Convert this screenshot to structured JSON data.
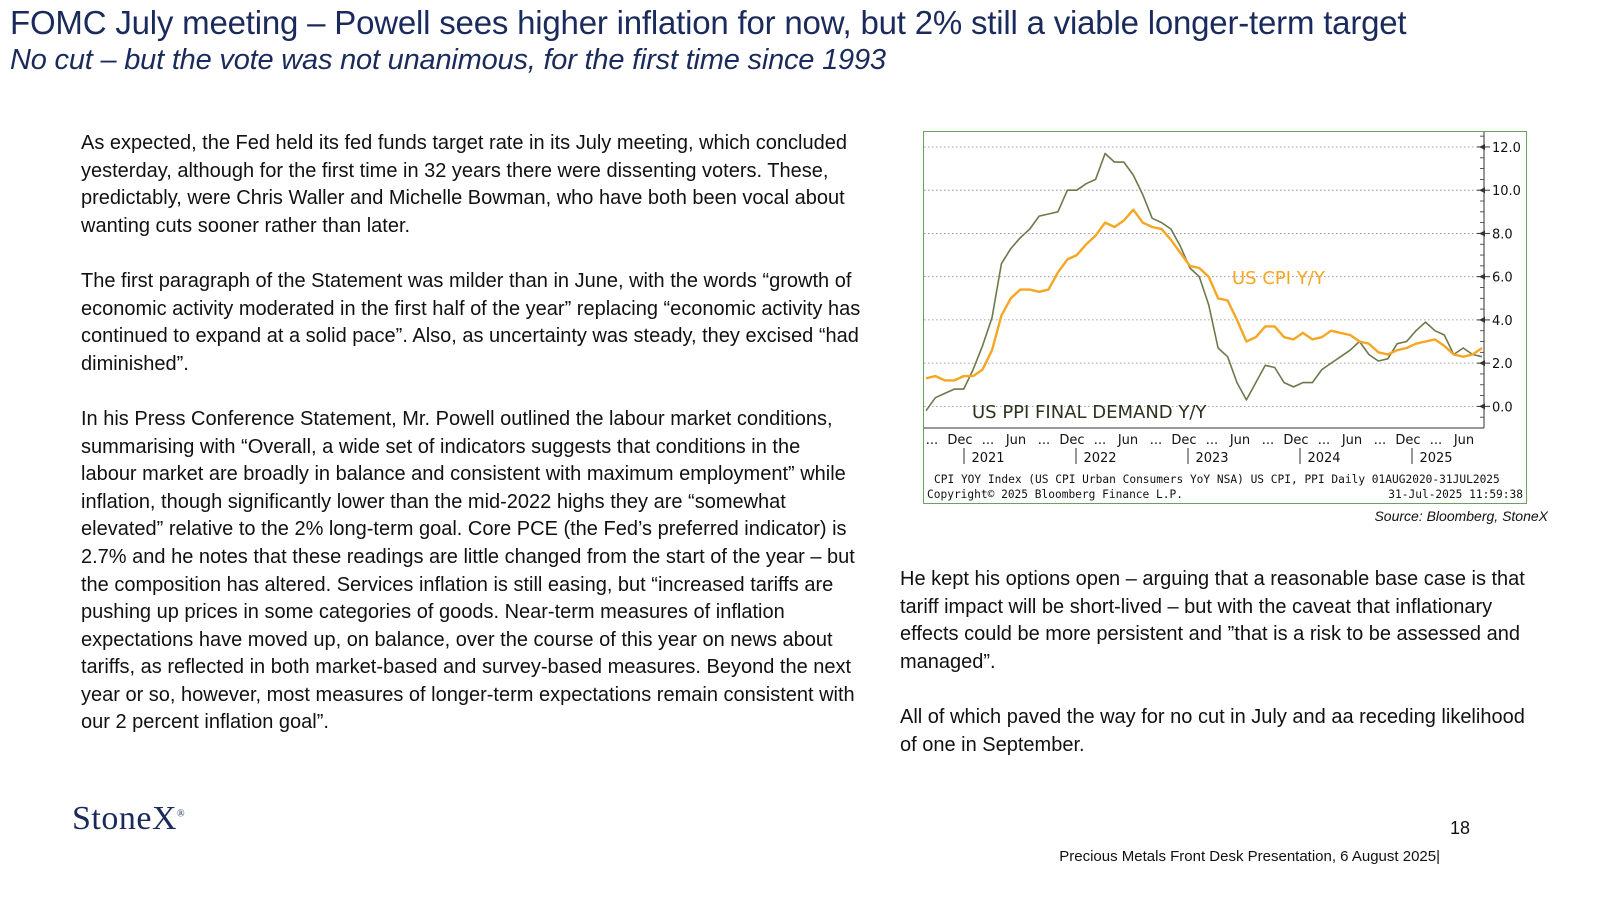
{
  "header": {
    "title": "FOMC July meeting – Powell sees higher inflation for now, but 2% still a viable longer-term target",
    "subtitle": "No cut – but the vote was not unanimous, for the first time since 1993"
  },
  "left_column": {
    "paragraphs": [
      "As expected, the Fed held its fed funds target rate in its July meeting, which concluded yesterday, although for the first time in 32 years there were dissenting voters.  These, predictably, were Chris Waller and Michelle Bowman, who have both been vocal about wanting cuts sooner rather than later.",
      "The first paragraph of the Statement was milder than in June, with the words “growth of economic activity moderated in the first half of the year” replacing “economic activity has continued to expand at a solid pace”.   Also, as uncertainty was steady, they excised “had diminished”.",
      "In his Press Conference Statement, Mr. Powell outlined the labour market conditions, summarising with “Overall, a wide set of indicators suggests that conditions in the labour market are broadly in balance and consistent with maximum employment” while inflation, though significantly lower than the mid-2022 highs  they are “somewhat elevated” relative to the  2% long-term goal.  Core PCE (the Fed’s preferred indicator) is 2.7% and he notes that these readings are little changed from the start of the year – but the composition has altered.  Services inflation is still easing, but “increased tariffs are pushing up prices in some categories of goods.  Near-term measures of inflation expectations have moved up, on balance, over the course of this year on news about tariffs, as reflected in both market-based and survey-based measures.  Beyond the next year or so, however, most measures of longer-term expectations remain consistent with our 2 percent inflation goal”."
    ]
  },
  "right_column": {
    "paragraphs": [
      "He kept his options open – arguing that a reasonable base case is that tariff impact will be short-lived – but with the caveat that inflationary effects could be more persistent and ”that is a  risk to be assessed and managed”.",
      "All of which paved the way for no cut in July and aa receding likelihood of one in September."
    ]
  },
  "chart_data": {
    "type": "line",
    "ylim": [
      -1.0,
      12.6
    ],
    "y_ticks": [
      "12.0",
      "10.0",
      "8.0",
      "6.0",
      "4.0",
      "2.0",
      "0.0"
    ],
    "y_tick_values": [
      12,
      10,
      8,
      6,
      4,
      2,
      0
    ],
    "x_tick_labels": [
      "...",
      "Dec",
      "...",
      "Jun",
      "...",
      "Dec",
      "...",
      "Jun",
      "...",
      "Dec",
      "...",
      "Jun",
      "...",
      "Dec",
      "...",
      "Jun",
      "...",
      "Dec",
      "...",
      "Jun"
    ],
    "year_labels": [
      "2021",
      "2022",
      "2023",
      "2024",
      "2025"
    ],
    "x_start_month": "2020-08",
    "grid": true,
    "series": [
      {
        "name": "US CPI Y/Y",
        "color": "#f5a623",
        "values": [
          1.3,
          1.4,
          1.2,
          1.2,
          1.4,
          1.4,
          1.7,
          2.6,
          4.2,
          5.0,
          5.4,
          5.4,
          5.3,
          5.4,
          6.2,
          6.8,
          7.0,
          7.5,
          7.9,
          8.5,
          8.3,
          8.6,
          9.1,
          8.5,
          8.3,
          8.2,
          7.7,
          7.1,
          6.5,
          6.4,
          6.0,
          5.0,
          4.9,
          4.0,
          3.0,
          3.2,
          3.7,
          3.7,
          3.2,
          3.1,
          3.4,
          3.1,
          3.2,
          3.5,
          3.4,
          3.3,
          3.0,
          2.9,
          2.5,
          2.4,
          2.6,
          2.7,
          2.9,
          3.0,
          3.1,
          2.8,
          2.4,
          2.3,
          2.4,
          2.7
        ]
      },
      {
        "name": "US PPI FINAL DEMAND Y/Y",
        "color": "#6b7a4a",
        "values": [
          -0.2,
          0.4,
          0.6,
          0.8,
          0.8,
          1.7,
          2.8,
          4.1,
          6.6,
          7.3,
          7.8,
          8.2,
          8.8,
          8.9,
          9.0,
          10.0,
          10.0,
          10.3,
          10.5,
          11.7,
          11.3,
          11.3,
          10.7,
          9.8,
          8.7,
          8.5,
          8.2,
          7.4,
          6.4,
          6.0,
          4.7,
          2.7,
          2.3,
          1.1,
          0.3,
          1.1,
          1.9,
          1.8,
          1.1,
          0.9,
          1.1,
          1.1,
          1.7,
          2.0,
          2.3,
          2.6,
          3.0,
          2.4,
          2.1,
          2.2,
          2.9,
          3.0,
          3.5,
          3.9,
          3.5,
          3.3,
          2.4,
          2.7,
          2.4,
          2.3
        ]
      }
    ],
    "annotations": {
      "cpi_label": "US CPI Y/Y",
      "ppi_label": "US PPI FINAL DEMAND Y/Y"
    },
    "footer_line1": "CPI YOY Index (US CPI Urban Consumers YoY NSA) US CPI, PPI  Daily 01AUG2020-31JUL2025",
    "footer_line2_left": "Copyright© 2025 Bloomberg Finance L.P.",
    "footer_line2_right": "31-Jul-2025 11:59:38"
  },
  "source_note": "Source: Bloomberg, StoneX",
  "footer": {
    "logo_text": "StoneX",
    "logo_mark": "®",
    "page_number": "18",
    "presentation": "Precious Metals Front Desk Presentation, 6 August 2025|"
  }
}
